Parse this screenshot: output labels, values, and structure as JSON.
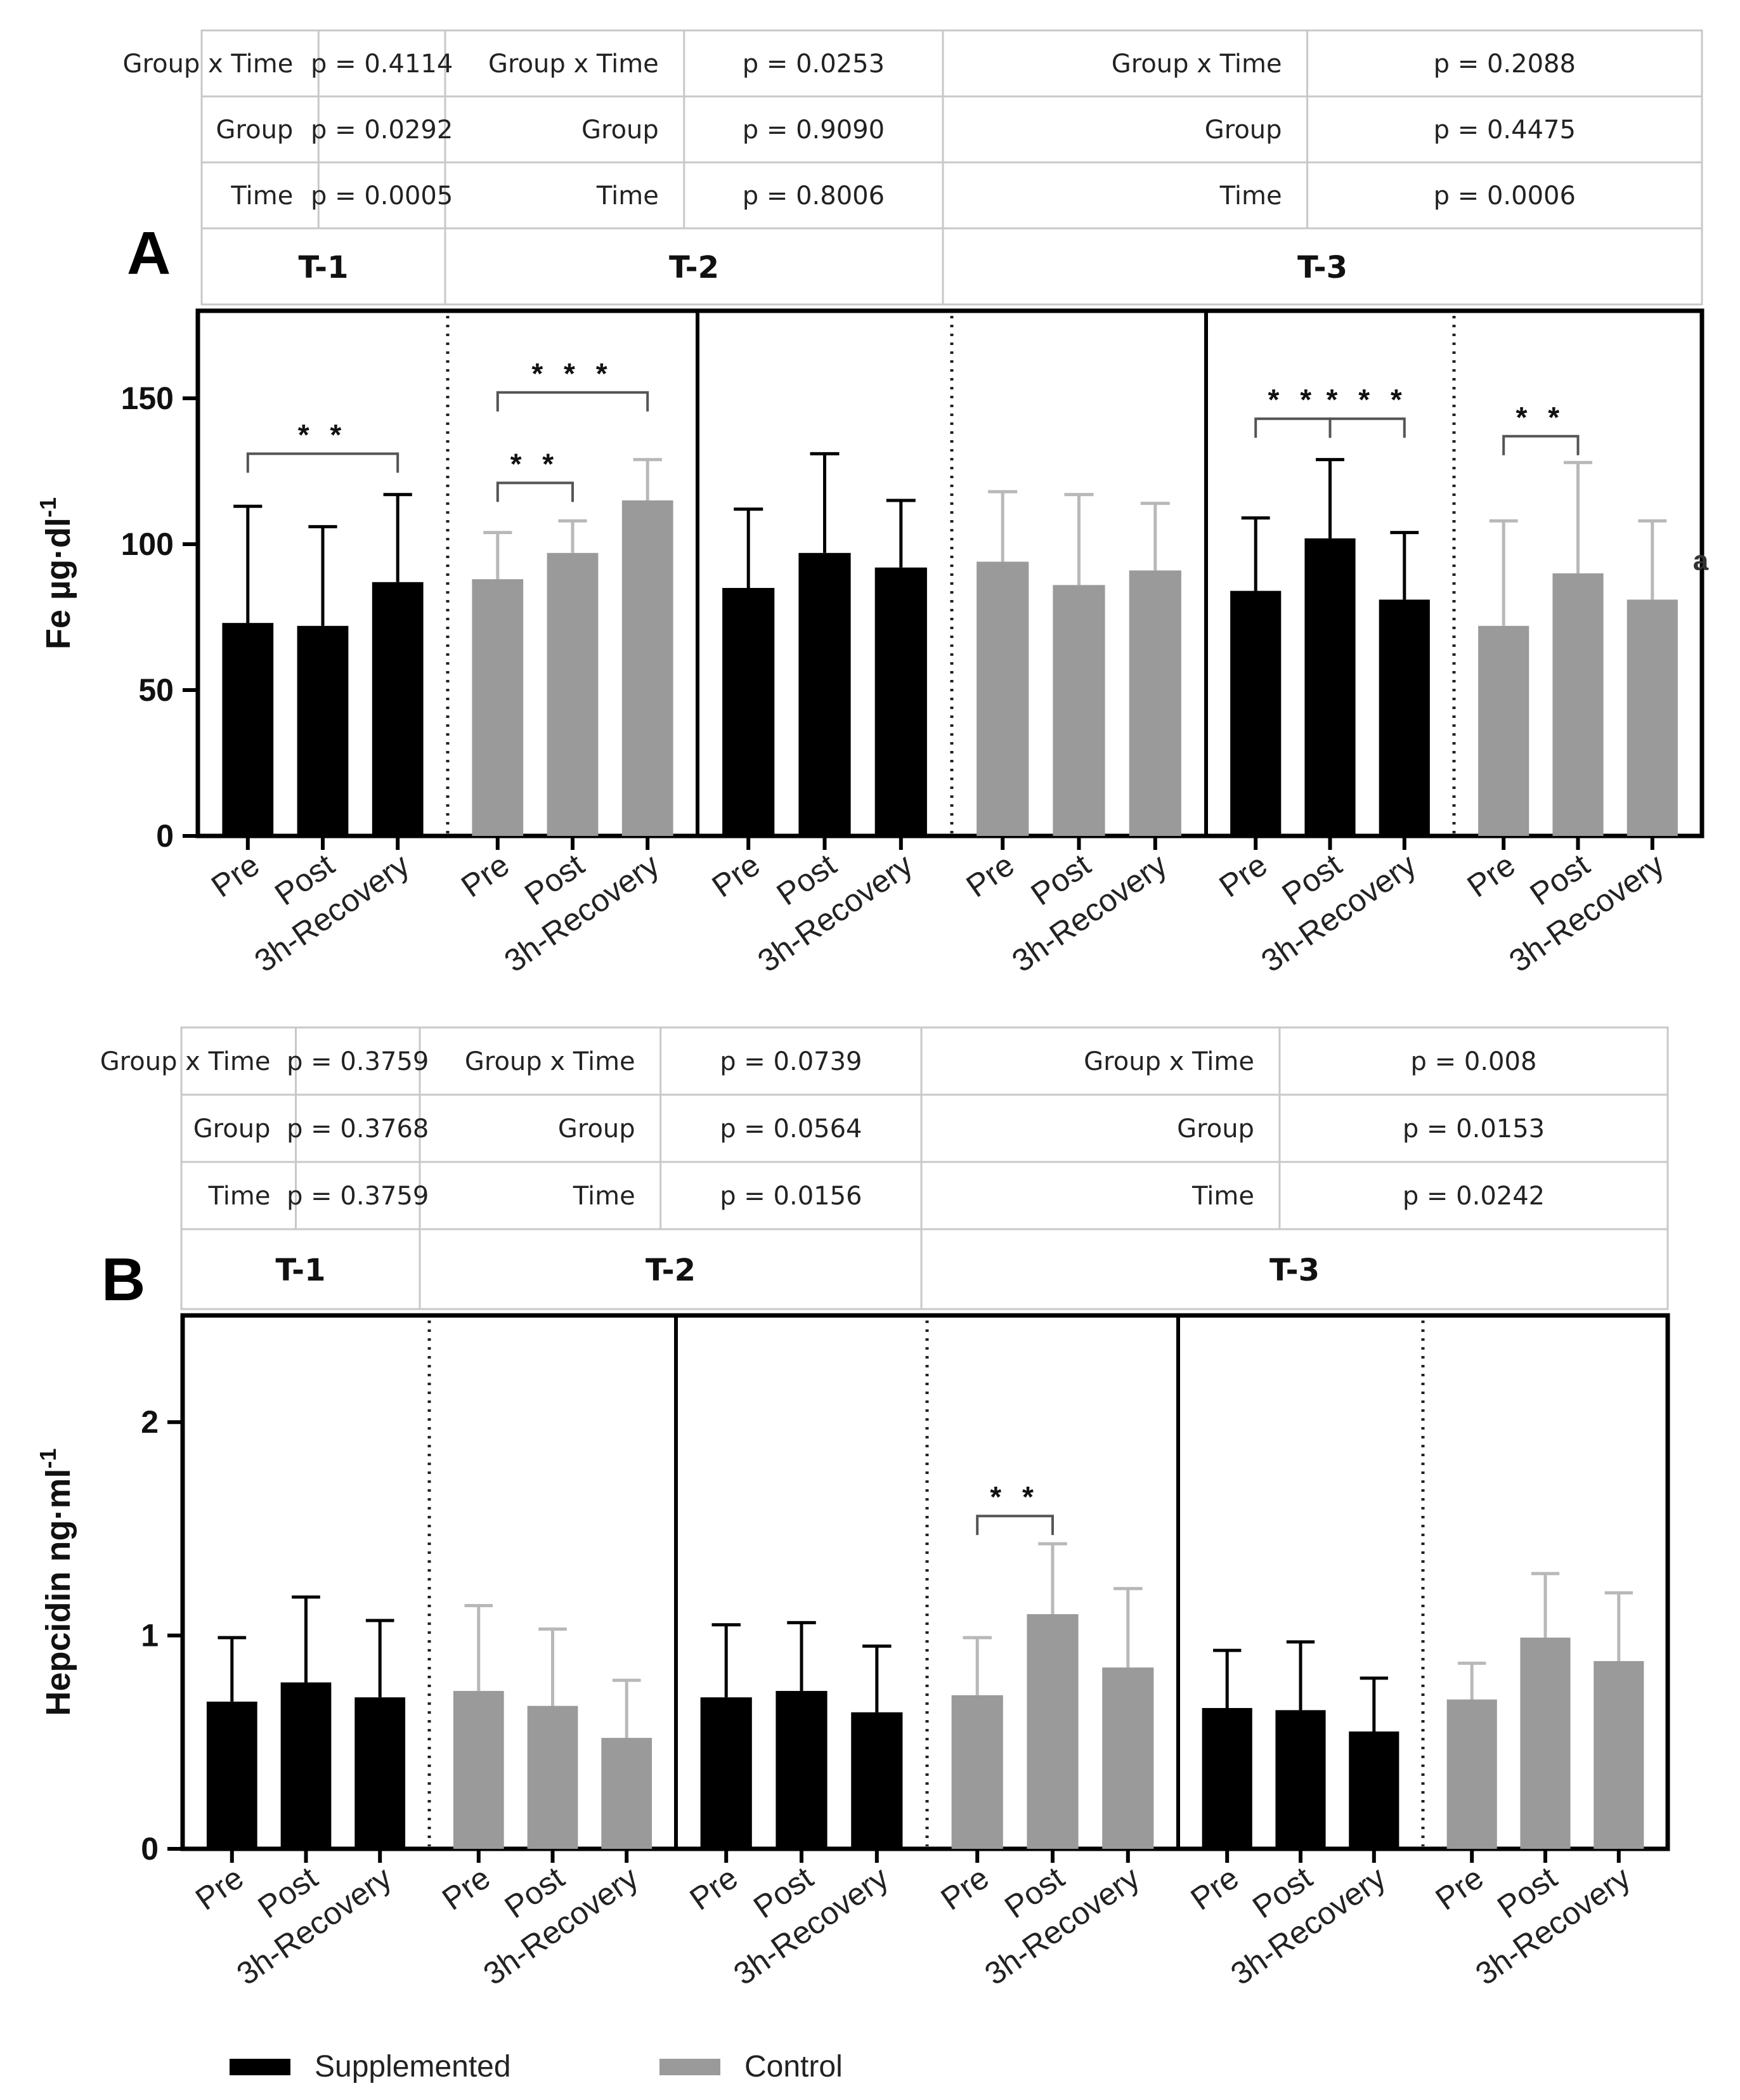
{
  "colors": {
    "supplemented": "#000000",
    "control": "#9a9a9a",
    "control_err": "#b8b8b8"
  },
  "legend": [
    {
      "label": "Supplemented",
      "color": "#000000"
    },
    {
      "label": "Control",
      "color": "#9a9a9a"
    }
  ],
  "chart_data": [
    {
      "panel": "A",
      "type": "bar",
      "ylabel": "Fe µg·dl",
      "ylabel_sup": "-1",
      "yticks": [
        0,
        50,
        100,
        150
      ],
      "ylim": [
        0,
        180
      ],
      "categories": [
        "Pre",
        "Post",
        "3h-Recovery"
      ],
      "stats_row_labels": [
        "Group x Time",
        "Group",
        "Time"
      ],
      "trials": [
        {
          "name": "T-1",
          "stats": [
            "p = 0.4114",
            "p = 0.0292",
            "p = 0.0005"
          ],
          "series": [
            {
              "group": "supplemented",
              "values": [
                73,
                72,
                87
              ],
              "errors": [
                40,
                34,
                30
              ]
            },
            {
              "group": "control",
              "values": [
                88,
                97,
                115
              ],
              "errors": [
                16,
                11,
                14
              ]
            }
          ],
          "brackets": [
            {
              "series": 0,
              "from": 0,
              "to": 2,
              "label": "* *",
              "y": 131
            },
            {
              "series": 1,
              "from": 0,
              "to": 1,
              "label": "* *",
              "y": 121
            },
            {
              "series": 1,
              "from": 0,
              "to": 2,
              "label": "* * *",
              "y": 152
            }
          ],
          "annotations": []
        },
        {
          "name": "T-2",
          "stats": [
            "p = 0.0253",
            "p = 0.9090",
            "p = 0.8006"
          ],
          "series": [
            {
              "group": "supplemented",
              "values": [
                85,
                97,
                92
              ],
              "errors": [
                27,
                34,
                23
              ]
            },
            {
              "group": "control",
              "values": [
                94,
                86,
                91
              ],
              "errors": [
                24,
                31,
                23
              ]
            }
          ],
          "brackets": [],
          "annotations": []
        },
        {
          "name": "T-3",
          "stats": [
            "p = 0.2088",
            "p = 0.4475",
            "p = 0.0006"
          ],
          "series": [
            {
              "group": "supplemented",
              "values": [
                84,
                102,
                81
              ],
              "errors": [
                25,
                27,
                23
              ]
            },
            {
              "group": "control",
              "values": [
                72,
                90,
                81
              ],
              "errors": [
                36,
                38,
                27
              ]
            }
          ],
          "brackets": [
            {
              "series": 0,
              "from": 0,
              "to": 1,
              "label": "* *",
              "y": 143
            },
            {
              "series": 0,
              "from": 1,
              "to": 2,
              "label": "* * *",
              "y": 143
            },
            {
              "series": 1,
              "from": 0,
              "to": 1,
              "label": "* *",
              "y": 137
            }
          ],
          "annotations": [
            {
              "series": 1,
              "index": 2,
              "text": "a"
            }
          ]
        }
      ]
    },
    {
      "panel": "B",
      "type": "bar",
      "ylabel": "Hepcidin ng·ml",
      "ylabel_sup": "-1",
      "yticks": [
        0,
        1,
        2
      ],
      "ylim": [
        0,
        2.5
      ],
      "categories": [
        "Pre",
        "Post",
        "3h-Recovery"
      ],
      "stats_row_labels": [
        "Group x Time",
        "Group",
        "Time"
      ],
      "trials": [
        {
          "name": "T-1",
          "stats": [
            "p = 0.3759",
            "p = 0.3768",
            "p = 0.3759"
          ],
          "series": [
            {
              "group": "supplemented",
              "values": [
                0.69,
                0.78,
                0.71
              ],
              "errors": [
                0.3,
                0.4,
                0.36
              ]
            },
            {
              "group": "control",
              "values": [
                0.74,
                0.67,
                0.52
              ],
              "errors": [
                0.4,
                0.36,
                0.27
              ]
            }
          ],
          "brackets": [],
          "annotations": []
        },
        {
          "name": "T-2",
          "stats": [
            "p = 0.0739",
            "p = 0.0564",
            "p = 0.0156"
          ],
          "series": [
            {
              "group": "supplemented",
              "values": [
                0.71,
                0.74,
                0.64
              ],
              "errors": [
                0.34,
                0.32,
                0.31
              ]
            },
            {
              "group": "control",
              "values": [
                0.72,
                1.1,
                0.85
              ],
              "errors": [
                0.27,
                0.33,
                0.37
              ]
            }
          ],
          "brackets": [
            {
              "series": 1,
              "from": 0,
              "to": 1,
              "label": "* *",
              "y": 1.56
            }
          ],
          "annotations": []
        },
        {
          "name": "T-3",
          "stats": [
            "p = 0.008",
            "p = 0.0153",
            "p = 0.0242"
          ],
          "series": [
            {
              "group": "supplemented",
              "values": [
                0.66,
                0.65,
                0.55
              ],
              "errors": [
                0.27,
                0.32,
                0.25
              ]
            },
            {
              "group": "control",
              "values": [
                0.7,
                0.99,
                0.88
              ],
              "errors": [
                0.17,
                0.3,
                0.32
              ]
            }
          ],
          "brackets": [],
          "annotations": []
        }
      ]
    }
  ]
}
